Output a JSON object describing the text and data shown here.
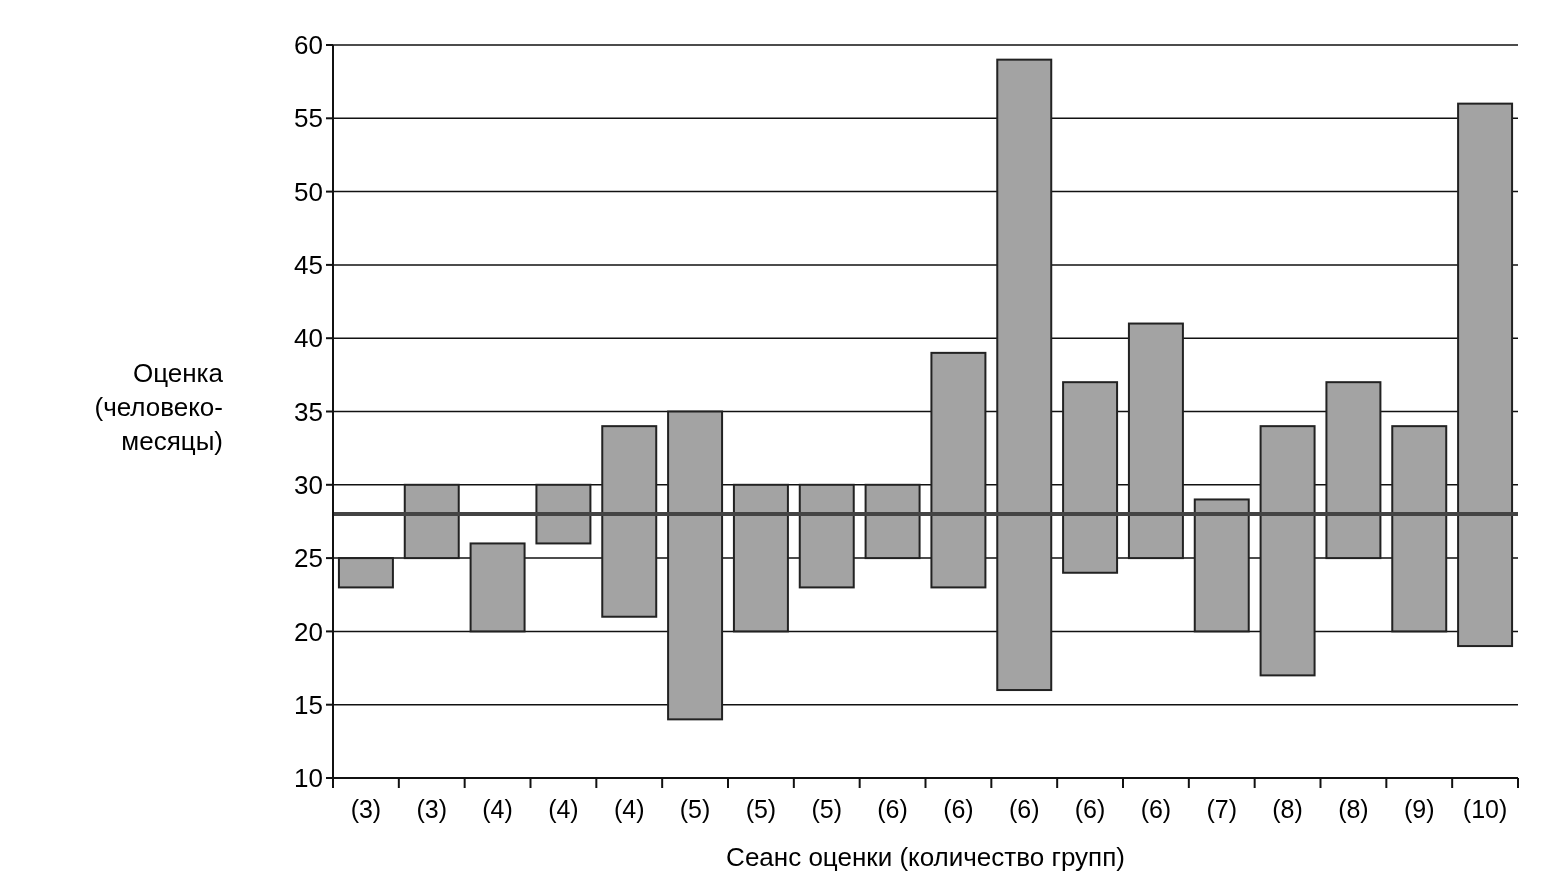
{
  "chart_data": {
    "type": "bar",
    "xlabel": "Сеанс оценки (количество групп)",
    "ylabel": "Оценка (человеко-месяцы)",
    "categories": [
      "(3)",
      "(3)",
      "(4)",
      "(4)",
      "(4)",
      "(5)",
      "(5)",
      "(5)",
      "(6)",
      "(6)",
      "(6)",
      "(6)",
      "(6)",
      "(7)",
      "(8)",
      "(8)",
      "(9)",
      "(10)"
    ],
    "base": [
      23,
      25,
      20,
      26,
      21,
      14,
      20,
      23,
      25,
      23,
      16,
      24,
      25,
      20,
      17,
      25,
      20,
      19
    ],
    "values": [
      2,
      5,
      6,
      4,
      13,
      21,
      10,
      7,
      5,
      16,
      43,
      13,
      16,
      9,
      17,
      12,
      14,
      37
    ],
    "color": "#a3a3a3",
    "ylim": [
      10,
      60
    ],
    "yticks": [
      10,
      15,
      20,
      25,
      30,
      35,
      40,
      45,
      50,
      55,
      60
    ],
    "grid": "y",
    "ref_lines": [
      {
        "axis": "y",
        "value": 28,
        "color": "#444444"
      }
    ]
  }
}
